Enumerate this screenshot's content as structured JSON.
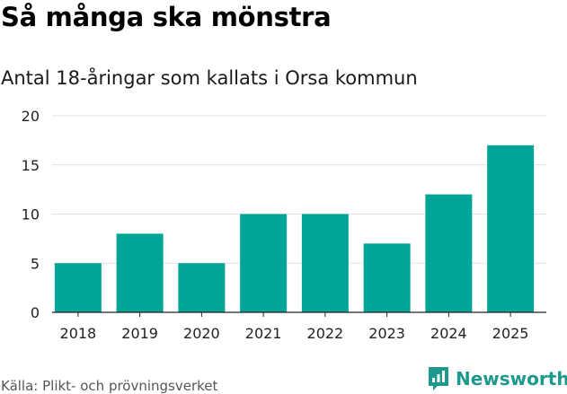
{
  "title": "Så många ska mönstra",
  "subtitle": "Antal 18-åringar som kallats i Orsa kommun",
  "source": "Källa: Plikt- och prövningsverket",
  "brand": {
    "name": "Newsworthy",
    "icon": "newsworthy-logo-icon"
  },
  "colors": {
    "bar": "#00a598",
    "brand": "#1d9a8d",
    "grid": "#e2e2e2",
    "axis": "#222222"
  },
  "chart_data": {
    "type": "bar",
    "categories": [
      "2018",
      "2019",
      "2020",
      "2021",
      "2022",
      "2023",
      "2024",
      "2025"
    ],
    "values": [
      5,
      8,
      5,
      10,
      10,
      7,
      12,
      17
    ],
    "yticks": [
      "0",
      "5",
      "10",
      "15",
      "20"
    ],
    "ylim": [
      0,
      20
    ],
    "xlabel": "",
    "ylabel": "",
    "grid": true
  }
}
